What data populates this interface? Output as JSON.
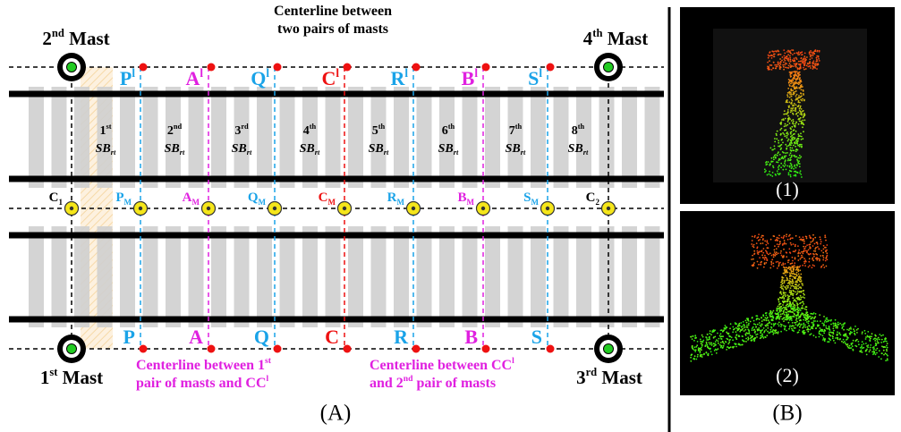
{
  "masts": [
    [
      {
        "text": "2"
      },
      {
        "text": "nd",
        "style": "sup"
      },
      {
        "text": " Mast"
      }
    ],
    [
      {
        "text": "4"
      },
      {
        "text": "th",
        "style": "sup"
      },
      {
        "text": " Mast"
      }
    ],
    [
      {
        "text": "1"
      },
      {
        "text": "st",
        "style": "sup"
      },
      {
        "text": " Mast"
      }
    ],
    [
      {
        "text": "3"
      },
      {
        "text": "rd",
        "style": "sup"
      },
      {
        "text": " Mast"
      }
    ]
  ],
  "top_labels": [
    [
      {
        "text": "P"
      },
      {
        "text": "l",
        "style": "sup"
      }
    ],
    [
      {
        "text": "A"
      },
      {
        "text": "l",
        "style": "sup"
      }
    ],
    [
      {
        "text": "Q"
      },
      {
        "text": "l",
        "style": "sup"
      }
    ],
    [
      {
        "text": "C"
      },
      {
        "text": "l",
        "style": "sup"
      }
    ],
    [
      {
        "text": "R"
      },
      {
        "text": "l",
        "style": "sup"
      }
    ],
    [
      {
        "text": "B"
      },
      {
        "text": "l",
        "style": "sup"
      }
    ],
    [
      {
        "text": "S"
      },
      {
        "text": "l",
        "style": "sup"
      }
    ]
  ],
  "mid_labels": [
    [
      {
        "text": "C"
      },
      {
        "text": "1",
        "style": "sub"
      }
    ],
    [
      {
        "text": "P"
      },
      {
        "text": "M",
        "style": "sub"
      }
    ],
    [
      {
        "text": "A"
      },
      {
        "text": "M",
        "style": "sub"
      }
    ],
    [
      {
        "text": "Q"
      },
      {
        "text": "M",
        "style": "sub"
      }
    ],
    [
      {
        "text": "C"
      },
      {
        "text": "M",
        "style": "sub"
      }
    ],
    [
      {
        "text": "R"
      },
      {
        "text": "M",
        "style": "sub"
      }
    ],
    [
      {
        "text": "B"
      },
      {
        "text": "M",
        "style": "sub"
      }
    ],
    [
      {
        "text": "S"
      },
      {
        "text": "M",
        "style": "sub"
      }
    ],
    [
      {
        "text": "C"
      },
      {
        "text": "2",
        "style": "sub"
      }
    ]
  ],
  "bottom_labels": [
    "P",
    "A",
    "Q",
    "C",
    "R",
    "B",
    "S"
  ],
  "segments": [
    {
      "ordinal": [
        {
          "text": "1"
        },
        {
          "text": "st",
          "style": "sup"
        }
      ],
      "symbol": [
        {
          "text": "SB"
        },
        {
          "text": "rt",
          "style": "sub"
        }
      ]
    },
    {
      "ordinal": [
        {
          "text": "2"
        },
        {
          "text": "nd",
          "style": "sup"
        }
      ],
      "symbol": [
        {
          "text": "SB"
        },
        {
          "text": "rt",
          "style": "sub"
        }
      ]
    },
    {
      "ordinal": [
        {
          "text": "3"
        },
        {
          "text": "rd",
          "style": "sup"
        }
      ],
      "symbol": [
        {
          "text": "SB"
        },
        {
          "text": "rt",
          "style": "sub"
        }
      ]
    },
    {
      "ordinal": [
        {
          "text": "4"
        },
        {
          "text": "th",
          "style": "sup"
        }
      ],
      "symbol": [
        {
          "text": "SB"
        },
        {
          "text": "rt",
          "style": "sub"
        }
      ]
    },
    {
      "ordinal": [
        {
          "text": "5"
        },
        {
          "text": "th",
          "style": "sup"
        }
      ],
      "symbol": [
        {
          "text": "SB"
        },
        {
          "text": "rt",
          "style": "sub"
        }
      ]
    },
    {
      "ordinal": [
        {
          "text": "6"
        },
        {
          "text": "th",
          "style": "sup"
        }
      ],
      "symbol": [
        {
          "text": "SB"
        },
        {
          "text": "rt",
          "style": "sub"
        }
      ]
    },
    {
      "ordinal": [
        {
          "text": "7"
        },
        {
          "text": "th",
          "style": "sup"
        }
      ],
      "symbol": [
        {
          "text": "SB"
        },
        {
          "text": "rt",
          "style": "sub"
        }
      ]
    },
    {
      "ordinal": [
        {
          "text": "8"
        },
        {
          "text": "th",
          "style": "sup"
        }
      ],
      "symbol": [
        {
          "text": "SB"
        },
        {
          "text": "rt",
          "style": "sub"
        }
      ]
    }
  ],
  "annotations": {
    "top_center": [
      [
        {
          "text": "Centerline between"
        }
      ],
      [
        {
          "text": "two pairs of masts"
        }
      ]
    ],
    "bottom_left": [
      [
        {
          "text": "Centerline between 1"
        },
        {
          "text": "st",
          "style": "sup"
        }
      ],
      [
        {
          "text": "pair of masts and CC"
        },
        {
          "text": "l",
          "style": "sup"
        }
      ]
    ],
    "bottom_right": [
      [
        {
          "text": "Centerline between CC"
        },
        {
          "text": "l",
          "style": "sup"
        }
      ],
      [
        {
          "text": "and 2"
        },
        {
          "text": "nd",
          "style": "sup"
        },
        {
          "text": " pair of masts"
        }
      ]
    ]
  },
  "panels": {
    "left": "(A)",
    "right": "(B)",
    "image_1": "(1)",
    "image_2": "(2)"
  }
}
